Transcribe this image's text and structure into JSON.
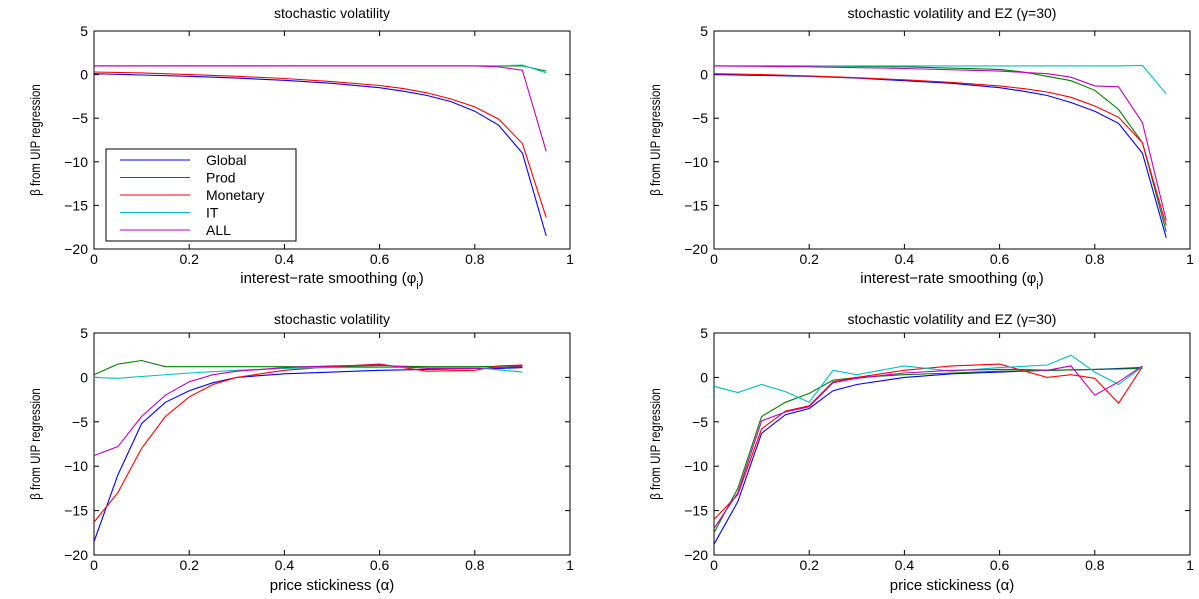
{
  "figure": {
    "colors": {
      "Global": "#0000ff",
      "Prod": "#008000",
      "Monetary": "#ff0000",
      "IT": "#00bfbf",
      "ALL": "#bf00bf"
    }
  },
  "chart_data": [
    {
      "type": "line",
      "title": "stochastic volatility",
      "xlabel": "interest−rate smoothing (φ",
      "xlabel_sub": "i",
      "xlabel_end": ")",
      "ylabel": "β from UIP regression",
      "xlim": [
        0,
        1
      ],
      "ylim": [
        -20,
        5
      ],
      "xticks": [
        0,
        0.2,
        0.4,
        0.6,
        0.8,
        1
      ],
      "xtick_labels": [
        "0",
        "0.2",
        "0.4",
        "0.6",
        "0.8",
        "1"
      ],
      "yticks": [
        5,
        0,
        -5,
        -10,
        -15,
        -20
      ],
      "ytick_labels": [
        "5",
        "0",
        "−5",
        "−10",
        "−15",
        "−20"
      ],
      "legend": {
        "placement": "lower-left",
        "entries": [
          "Global",
          "Prod",
          "Monetary",
          "IT",
          "ALL"
        ]
      },
      "series": [
        {
          "name": "Global",
          "x": [
            0,
            0.1,
            0.2,
            0.3,
            0.4,
            0.5,
            0.6,
            0.65,
            0.7,
            0.75,
            0.8,
            0.85,
            0.9,
            0.95
          ],
          "y": [
            0.1,
            -0.05,
            -0.2,
            -0.4,
            -0.65,
            -1.0,
            -1.5,
            -1.9,
            -2.4,
            -3.1,
            -4.2,
            -5.8,
            -9.0,
            -18.5
          ]
        },
        {
          "name": "Prod",
          "x": [
            0,
            0.2,
            0.4,
            0.6,
            0.8,
            0.85,
            0.9,
            0.95
          ],
          "y": [
            1.0,
            1.0,
            1.0,
            1.0,
            1.0,
            1.0,
            1.0,
            0.4
          ]
        },
        {
          "name": "Monetary",
          "x": [
            0,
            0.1,
            0.2,
            0.3,
            0.4,
            0.5,
            0.6,
            0.65,
            0.7,
            0.75,
            0.8,
            0.85,
            0.9,
            0.95
          ],
          "y": [
            0.3,
            0.2,
            0.0,
            -0.2,
            -0.45,
            -0.8,
            -1.25,
            -1.6,
            -2.1,
            -2.8,
            -3.7,
            -5.1,
            -7.9,
            -16.4
          ]
        },
        {
          "name": "IT",
          "x": [
            0,
            0.2,
            0.4,
            0.6,
            0.8,
            0.85,
            0.9,
            0.95
          ],
          "y": [
            1.0,
            1.0,
            1.0,
            1.0,
            1.0,
            1.0,
            1.1,
            0.2
          ]
        },
        {
          "name": "ALL",
          "x": [
            0,
            0.2,
            0.4,
            0.6,
            0.8,
            0.85,
            0.9,
            0.95
          ],
          "y": [
            1.0,
            1.0,
            1.0,
            1.0,
            1.0,
            0.9,
            0.5,
            -8.8
          ]
        }
      ]
    },
    {
      "type": "line",
      "title": "stochastic volatility and EZ (γ=30)",
      "xlabel": "interest−rate smoothing (φ",
      "xlabel_sub": "i",
      "xlabel_end": ")",
      "ylabel": "β from UIP regression",
      "xlim": [
        0,
        1
      ],
      "ylim": [
        -20,
        5
      ],
      "xticks": [
        0,
        0.2,
        0.4,
        0.6,
        0.8,
        1
      ],
      "xtick_labels": [
        "0",
        "0.2",
        "0.4",
        "0.6",
        "0.8",
        "1"
      ],
      "yticks": [
        5,
        0,
        -5,
        -10,
        -15,
        -20
      ],
      "ytick_labels": [
        "5",
        "0",
        "−5",
        "−10",
        "−15",
        "−20"
      ],
      "series": [
        {
          "name": "Global",
          "x": [
            0,
            0.1,
            0.2,
            0.3,
            0.4,
            0.5,
            0.6,
            0.65,
            0.7,
            0.75,
            0.8,
            0.85,
            0.9,
            0.95
          ],
          "y": [
            0.0,
            -0.1,
            -0.2,
            -0.4,
            -0.7,
            -1.0,
            -1.5,
            -1.9,
            -2.4,
            -3.2,
            -4.2,
            -5.6,
            -9.0,
            -18.7
          ]
        },
        {
          "name": "Prod",
          "x": [
            0,
            0.2,
            0.4,
            0.6,
            0.65,
            0.7,
            0.75,
            0.8,
            0.85,
            0.9,
            0.95
          ],
          "y": [
            1.0,
            1.0,
            0.9,
            0.6,
            0.3,
            -0.2,
            -0.7,
            -1.8,
            -4.0,
            -7.8,
            -18.0
          ]
        },
        {
          "name": "Monetary",
          "x": [
            0,
            0.1,
            0.2,
            0.3,
            0.4,
            0.5,
            0.6,
            0.65,
            0.7,
            0.75,
            0.8,
            0.85,
            0.9,
            0.95
          ],
          "y": [
            0.1,
            0.0,
            -0.15,
            -0.35,
            -0.6,
            -0.9,
            -1.3,
            -1.6,
            -2.0,
            -2.6,
            -3.6,
            -4.9,
            -7.8,
            -17.3
          ]
        },
        {
          "name": "IT",
          "x": [
            0,
            0.2,
            0.4,
            0.6,
            0.8,
            0.85,
            0.9,
            0.95
          ],
          "y": [
            1.0,
            1.0,
            1.0,
            1.0,
            1.0,
            1.0,
            1.05,
            -2.2
          ]
        },
        {
          "name": "ALL",
          "x": [
            0,
            0.2,
            0.4,
            0.6,
            0.7,
            0.75,
            0.8,
            0.85,
            0.9,
            0.95
          ],
          "y": [
            1.0,
            0.9,
            0.7,
            0.4,
            0.1,
            -0.3,
            -1.3,
            -1.4,
            -5.5,
            -16.7
          ]
        }
      ]
    },
    {
      "type": "line",
      "title": "stochastic volatility",
      "xlabel": "price stickiness (α)",
      "ylabel": "β from UIP regression",
      "xlim": [
        0,
        1
      ],
      "ylim": [
        -20,
        5
      ],
      "xticks": [
        0,
        0.2,
        0.4,
        0.6,
        0.8,
        1
      ],
      "xtick_labels": [
        "0",
        "0.2",
        "0.4",
        "0.6",
        "0.8",
        "1"
      ],
      "yticks": [
        5,
        0,
        -5,
        -10,
        -15,
        -20
      ],
      "ytick_labels": [
        "5",
        "0",
        "−5",
        "−10",
        "−15",
        "−20"
      ],
      "series": [
        {
          "name": "Global",
          "x": [
            0,
            0.05,
            0.1,
            0.15,
            0.2,
            0.25,
            0.3,
            0.4,
            0.5,
            0.6,
            0.7,
            0.8,
            0.85,
            0.9
          ],
          "y": [
            -18.5,
            -11.0,
            -5.2,
            -2.8,
            -1.5,
            -0.6,
            0.0,
            0.4,
            0.6,
            0.8,
            0.9,
            1.0,
            1.0,
            1.1
          ]
        },
        {
          "name": "Prod",
          "x": [
            0,
            0.05,
            0.1,
            0.15,
            0.2,
            0.3,
            0.4,
            0.5,
            0.6,
            0.7,
            0.8,
            0.9
          ],
          "y": [
            0.3,
            1.5,
            1.9,
            1.2,
            1.2,
            1.2,
            1.2,
            1.2,
            1.3,
            1.2,
            1.2,
            1.3
          ]
        },
        {
          "name": "Monetary",
          "x": [
            0,
            0.05,
            0.1,
            0.15,
            0.2,
            0.25,
            0.3,
            0.4,
            0.5,
            0.6,
            0.7,
            0.8,
            0.85,
            0.9
          ],
          "y": [
            -16.3,
            -13.0,
            -8.0,
            -4.4,
            -2.2,
            -0.8,
            0.0,
            0.8,
            1.2,
            1.5,
            0.7,
            0.8,
            1.3,
            1.4
          ]
        },
        {
          "name": "IT",
          "x": [
            0,
            0.05,
            0.1,
            0.2,
            0.3,
            0.4,
            0.5,
            0.6,
            0.7,
            0.8,
            0.9
          ],
          "y": [
            0.0,
            -0.1,
            0.1,
            0.5,
            0.8,
            1.0,
            1.1,
            1.1,
            1.1,
            1.1,
            0.6
          ]
        },
        {
          "name": "ALL",
          "x": [
            0,
            0.05,
            0.1,
            0.15,
            0.2,
            0.25,
            0.3,
            0.4,
            0.5,
            0.6,
            0.7,
            0.8,
            0.85,
            0.9
          ],
          "y": [
            -8.8,
            -7.8,
            -4.4,
            -2.0,
            -0.5,
            0.3,
            0.7,
            1.1,
            1.3,
            1.4,
            1.0,
            1.0,
            1.1,
            1.2
          ]
        }
      ]
    },
    {
      "type": "line",
      "title": "stochastic volatility and EZ (γ=30)",
      "xlabel": "price stickiness (α)",
      "ylabel": "β from UIP regression",
      "xlim": [
        0,
        1
      ],
      "ylim": [
        -20,
        5
      ],
      "xticks": [
        0,
        0.2,
        0.4,
        0.6,
        0.8,
        1
      ],
      "xtick_labels": [
        "0",
        "0.2",
        "0.4",
        "0.6",
        "0.8",
        "1"
      ],
      "yticks": [
        5,
        0,
        -5,
        -10,
        -15,
        -20
      ],
      "ytick_labels": [
        "5",
        "0",
        "−5",
        "−10",
        "−15",
        "−20"
      ],
      "series": [
        {
          "name": "Global",
          "x": [
            0,
            0.05,
            0.1,
            0.15,
            0.2,
            0.25,
            0.3,
            0.4,
            0.5,
            0.6,
            0.7,
            0.8,
            0.9
          ],
          "y": [
            -18.8,
            -14.0,
            -6.3,
            -4.2,
            -3.5,
            -1.5,
            -0.8,
            0.0,
            0.4,
            0.6,
            0.8,
            0.9,
            1.1
          ]
        },
        {
          "name": "Prod",
          "x": [
            0,
            0.05,
            0.1,
            0.15,
            0.2,
            0.25,
            0.3,
            0.4,
            0.5,
            0.6,
            0.7,
            0.8,
            0.9
          ],
          "y": [
            -17.5,
            -12.5,
            -4.4,
            -2.8,
            -1.8,
            -0.3,
            0.0,
            0.3,
            0.5,
            0.7,
            0.8,
            0.9,
            1.0
          ]
        },
        {
          "name": "Monetary",
          "x": [
            0,
            0.05,
            0.1,
            0.15,
            0.2,
            0.25,
            0.3,
            0.4,
            0.5,
            0.6,
            0.7,
            0.75,
            0.8,
            0.85,
            0.9
          ],
          "y": [
            -16.0,
            -13.2,
            -5.8,
            -3.8,
            -3.2,
            -0.5,
            0.0,
            0.8,
            1.3,
            1.5,
            0.0,
            0.3,
            -0.1,
            -2.9,
            1.2
          ]
        },
        {
          "name": "IT",
          "x": [
            0,
            0.05,
            0.1,
            0.15,
            0.2,
            0.25,
            0.3,
            0.4,
            0.5,
            0.6,
            0.7,
            0.75,
            0.8,
            0.85,
            0.9
          ],
          "y": [
            -1.0,
            -1.7,
            -0.8,
            -1.6,
            -2.8,
            0.8,
            0.3,
            1.3,
            0.7,
            1.1,
            1.4,
            2.5,
            0.6,
            -0.8,
            1.2
          ]
        },
        {
          "name": "ALL",
          "x": [
            0,
            0.05,
            0.1,
            0.15,
            0.2,
            0.25,
            0.3,
            0.4,
            0.5,
            0.6,
            0.65,
            0.7,
            0.75,
            0.8,
            0.85,
            0.9
          ],
          "y": [
            -17.0,
            -13.0,
            -4.9,
            -3.9,
            -3.3,
            -0.6,
            -0.1,
            0.5,
            0.8,
            0.9,
            0.9,
            0.8,
            1.3,
            -2.0,
            -0.5,
            1.3
          ]
        }
      ]
    }
  ]
}
